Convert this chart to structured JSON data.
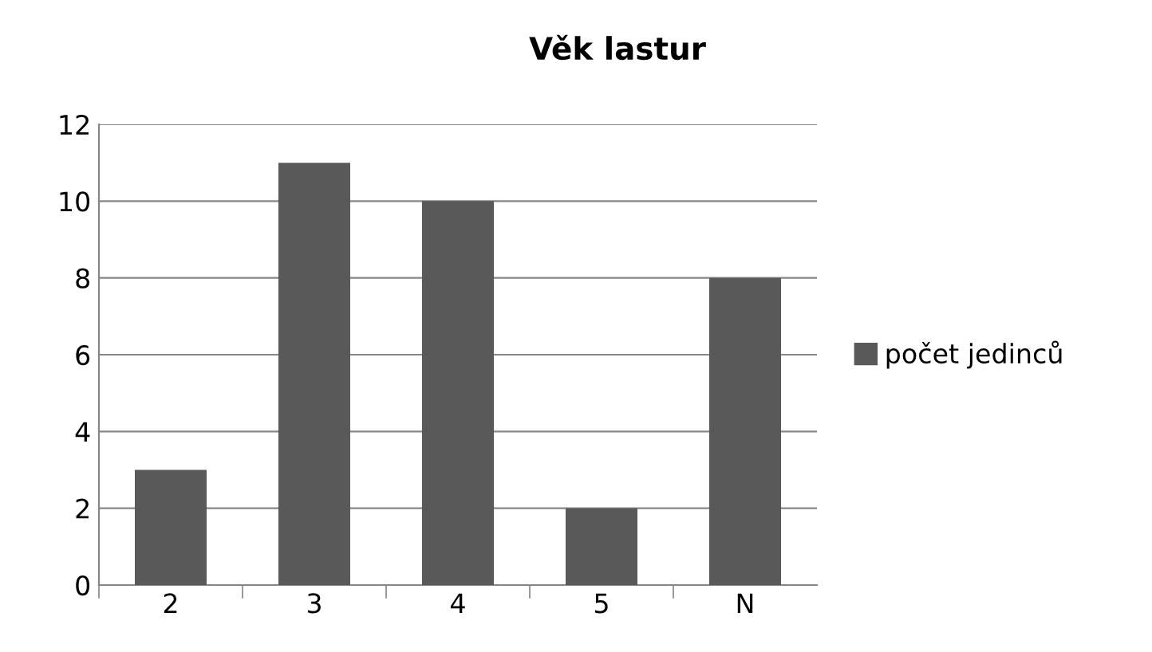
{
  "chart_data": {
    "type": "bar",
    "title": "Věk lastur",
    "categories": [
      "2",
      "3",
      "4",
      "5",
      "N"
    ],
    "series": [
      {
        "name": "počet jedinců",
        "color": "#595959",
        "values": [
          3,
          11,
          10,
          2,
          8
        ]
      }
    ],
    "ylim": [
      0,
      12
    ],
    "yticks": [
      0,
      2,
      4,
      6,
      8,
      10,
      12
    ],
    "grid": "y",
    "legend": "right"
  }
}
